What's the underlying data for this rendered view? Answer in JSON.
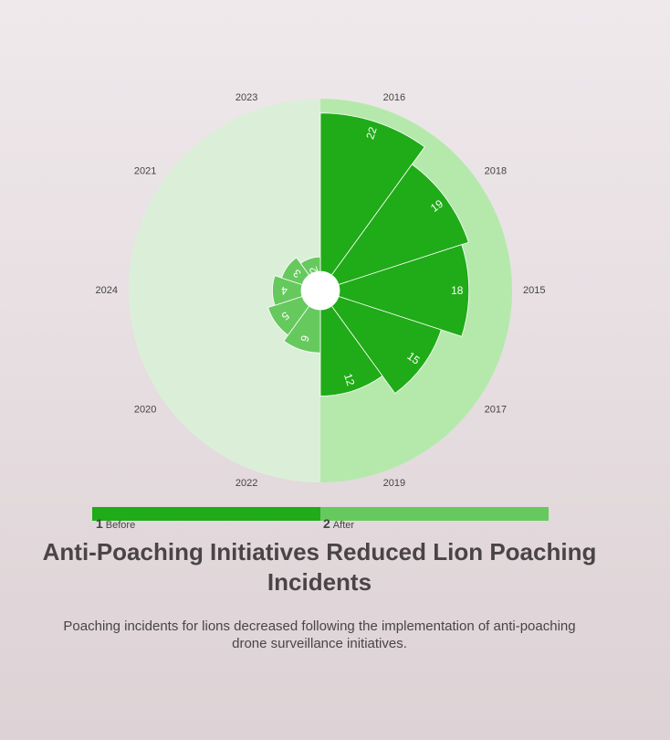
{
  "chart_data": {
    "type": "polar-bar",
    "title": "Anti-Poaching Initiatives Reduced Lion Poaching Incidents",
    "subtitle": "Poaching incidents for lions decreased following the implementation of anti-poaching drone surveillance initiatives.",
    "groups": [
      {
        "name": "Before",
        "number": "1",
        "color": "#20ab18",
        "background": "#b5e9ac",
        "years": [
          "2016",
          "2018",
          "2015",
          "2017",
          "2019"
        ],
        "values": [
          22,
          19,
          18,
          15,
          12
        ]
      },
      {
        "name": "After",
        "number": "2",
        "color": "#66c95e",
        "background": "#dbefd8",
        "years": [
          "2022",
          "2020",
          "2024",
          "2021",
          "2023"
        ],
        "values": [
          6,
          5,
          4,
          3,
          2
        ]
      }
    ],
    "rmax": 24
  },
  "legend": {
    "items": [
      {
        "number": "1",
        "label": "Before"
      },
      {
        "number": "2",
        "label": "After"
      }
    ]
  }
}
